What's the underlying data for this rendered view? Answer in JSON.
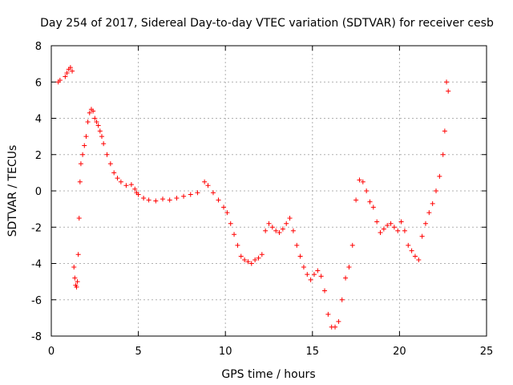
{
  "chart_data": {
    "type": "scatter",
    "title": "Day 254 of 2017, Sidereal Day-to-day VTEC variation (SDTVAR) for receiver cesb",
    "xlabel": "GPS time / hours",
    "ylabel": "SDTVAR / TECUs",
    "xlim": [
      0,
      25
    ],
    "ylim": [
      -8,
      8
    ],
    "xticks": [
      0,
      5,
      10,
      15,
      20,
      25
    ],
    "yticks": [
      -8,
      -6,
      -4,
      -2,
      0,
      2,
      4,
      6,
      8
    ],
    "xtick_labels": [
      "0",
      "5",
      "10",
      "15",
      "20",
      "25"
    ],
    "ytick_labels": [
      "-8",
      "-6",
      "-4",
      "-2",
      "0",
      "2",
      "4",
      "6",
      "8"
    ],
    "grid": true,
    "marker": "+",
    "color": "#ff0000",
    "series": [
      {
        "name": "SDTVAR",
        "x": [
          0.4,
          0.5,
          0.8,
          0.9,
          1.0,
          1.1,
          1.2,
          1.3,
          1.35,
          1.4,
          1.45,
          1.5,
          1.55,
          1.6,
          1.65,
          1.7,
          1.8,
          1.9,
          2.0,
          2.1,
          2.2,
          2.3,
          2.4,
          2.5,
          2.6,
          2.7,
          2.8,
          2.9,
          3.0,
          3.2,
          3.4,
          3.6,
          3.8,
          4.0,
          4.3,
          4.6,
          4.8,
          4.9,
          5.0,
          5.3,
          5.6,
          6.0,
          6.4,
          6.8,
          7.2,
          7.6,
          8.0,
          8.4,
          8.8,
          9.0,
          9.3,
          9.6,
          9.9,
          10.1,
          10.3,
          10.5,
          10.7,
          10.9,
          11.1,
          11.3,
          11.5,
          11.7,
          11.9,
          12.1,
          12.3,
          12.5,
          12.7,
          12.9,
          13.1,
          13.3,
          13.5,
          13.7,
          13.9,
          14.1,
          14.3,
          14.5,
          14.7,
          14.9,
          15.1,
          15.3,
          15.5,
          15.7,
          15.9,
          16.1,
          16.3,
          16.5,
          16.7,
          16.9,
          17.1,
          17.3,
          17.5,
          17.7,
          17.9,
          18.1,
          18.3,
          18.5,
          18.7,
          18.9,
          19.1,
          19.3,
          19.5,
          19.7,
          19.9,
          20.1,
          20.3,
          20.5,
          20.7,
          20.9,
          21.1,
          21.3,
          21.5,
          21.7,
          21.9,
          22.1,
          22.3,
          22.5,
          22.6,
          22.7,
          22.8
        ],
        "y": [
          6.0,
          6.1,
          6.3,
          6.5,
          6.7,
          6.8,
          6.6,
          -4.2,
          -4.8,
          -5.2,
          -5.3,
          -5.0,
          -3.5,
          -1.5,
          0.5,
          1.5,
          2.0,
          2.5,
          3.0,
          3.8,
          4.3,
          4.5,
          4.4,
          4.0,
          3.8,
          3.6,
          3.3,
          3.0,
          2.6,
          2.0,
          1.5,
          1.0,
          0.7,
          0.5,
          0.3,
          0.35,
          0.1,
          -0.1,
          -0.2,
          -0.4,
          -0.5,
          -0.55,
          -0.45,
          -0.5,
          -0.4,
          -0.3,
          -0.2,
          -0.1,
          0.5,
          0.3,
          -0.1,
          -0.5,
          -0.9,
          -1.2,
          -1.8,
          -2.4,
          -3.0,
          -3.6,
          -3.8,
          -3.9,
          -4.0,
          -3.8,
          -3.7,
          -3.5,
          -2.2,
          -1.8,
          -2.0,
          -2.2,
          -2.3,
          -2.1,
          -1.8,
          -1.5,
          -2.2,
          -3.0,
          -3.6,
          -4.2,
          -4.6,
          -4.9,
          -4.6,
          -4.4,
          -4.7,
          -5.5,
          -6.8,
          -7.5,
          -7.5,
          -7.2,
          -6.0,
          -4.8,
          -4.2,
          -3.0,
          -0.5,
          0.6,
          0.5,
          0.0,
          -0.6,
          -0.9,
          -1.7,
          -2.3,
          -2.1,
          -1.9,
          -1.8,
          -2.0,
          -2.2,
          -1.7,
          -2.2,
          -3.0,
          -3.3,
          -3.6,
          -3.8,
          -2.5,
          -1.8,
          -1.2,
          -0.7,
          0.0,
          0.8,
          2.0,
          3.3,
          6.0,
          5.5
        ]
      }
    ]
  }
}
